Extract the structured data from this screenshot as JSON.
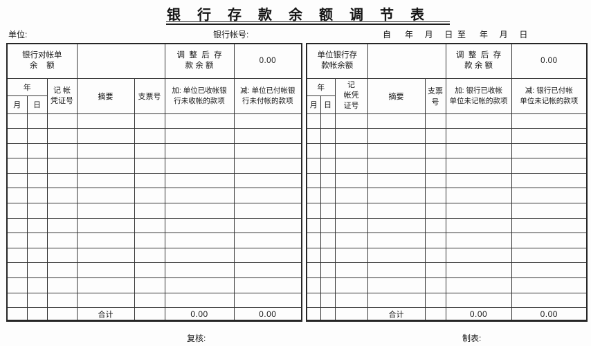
{
  "title": "银行存款余额调节表",
  "info": {
    "unit_label": "单位:",
    "account_label": "银行帐号:",
    "date_range": "自      年     月     日  至      年     月     日"
  },
  "layout": {
    "body_row_count": 13
  },
  "left_table": {
    "balance_label": [
      "银行对帐单",
      "余    额"
    ],
    "adjusted_label": [
      "调  整  后  存",
      "款 余 额"
    ],
    "adjusted_value": "0.00",
    "headers": {
      "year": "年",
      "month": "月",
      "day": "日",
      "voucher": [
        "记 帐",
        "凭证号"
      ],
      "summary": "摘要",
      "cheque_no": "支票号",
      "add": [
        "加: 单位已收帐银",
        "行未收帐的款项"
      ],
      "subtract": [
        "减: 单位已付帐银",
        "行未付帐的款项"
      ]
    },
    "total_label": "合计",
    "total_add": "0.00",
    "total_subtract": "0.00"
  },
  "right_table": {
    "balance_label": [
      "单位银行存",
      "款帐余额"
    ],
    "adjusted_label": [
      "调  整  后  存",
      "款 余 额"
    ],
    "adjusted_value": "0.00",
    "headers": {
      "year": "年",
      "month": "月",
      "day": "日",
      "voucher": [
        "记",
        "帐凭",
        "证号"
      ],
      "summary": "摘要",
      "cheque_no": "支票号",
      "add": [
        "加: 银行已收帐",
        "单位未记帐的款项"
      ],
      "subtract": [
        "减: 银行已付帐",
        "单位未记帐的款项"
      ]
    },
    "total_label": "合计",
    "total_add": "0.00",
    "total_subtract": "0.00"
  },
  "footer": {
    "review_label": "复核:",
    "prepared_label": "制表:"
  }
}
